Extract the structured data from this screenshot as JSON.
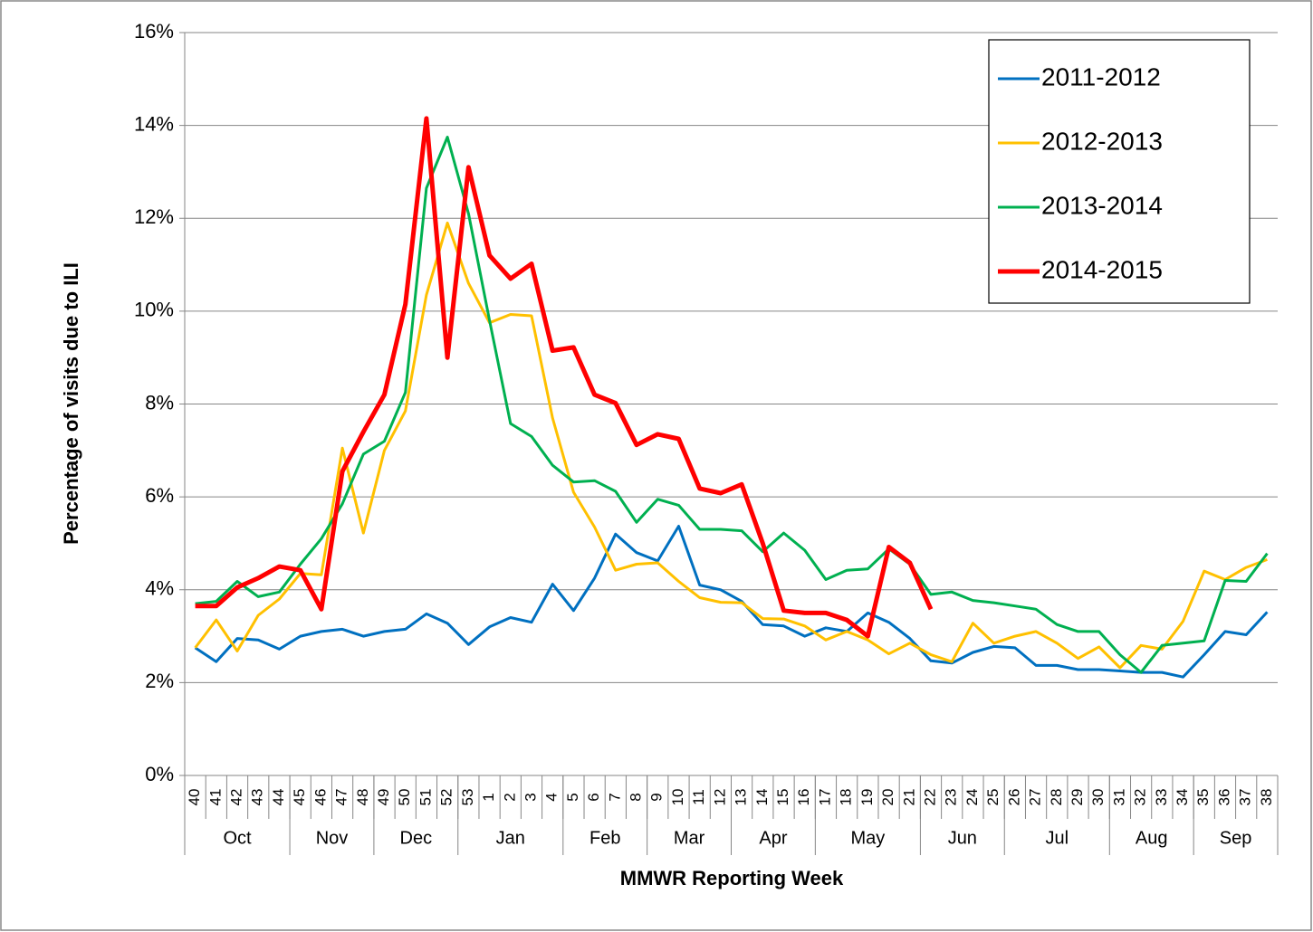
{
  "chart_data": {
    "type": "line",
    "y_label": "Percentage of visits due to ILI",
    "x_label": "MMWR Reporting Week",
    "categories": [
      "40",
      "41",
      "42",
      "43",
      "44",
      "45",
      "46",
      "47",
      "48",
      "49",
      "50",
      "51",
      "52",
      "53",
      "1",
      "2",
      "3",
      "4",
      "5",
      "6",
      "7",
      "8",
      "9",
      "10",
      "11",
      "12",
      "13",
      "14",
      "15",
      "16",
      "17",
      "18",
      "19",
      "20",
      "21",
      "22",
      "23",
      "24",
      "25",
      "26",
      "27",
      "28",
      "29",
      "30",
      "31",
      "32",
      "33",
      "34",
      "35",
      "36",
      "37",
      "38"
    ],
    "x_groups": [
      "Oct",
      null,
      null,
      null,
      null,
      "Nov",
      null,
      null,
      null,
      "Dec",
      null,
      null,
      null,
      "Jan",
      null,
      null,
      null,
      null,
      "Feb",
      null,
      null,
      null,
      "Mar",
      null,
      null,
      null,
      "Apr",
      null,
      null,
      null,
      "May",
      null,
      null,
      null,
      null,
      "Jun",
      null,
      null,
      null,
      "Jul",
      null,
      null,
      null,
      null,
      "Aug",
      null,
      null,
      null,
      "Sep",
      null,
      null,
      null
    ],
    "ylim": [
      0,
      16
    ],
    "yticks": [
      {
        "value": 0,
        "label": "0%"
      },
      {
        "value": 2,
        "label": "2%"
      },
      {
        "value": 4,
        "label": "4%"
      },
      {
        "value": 6,
        "label": "6%"
      },
      {
        "value": 8,
        "label": "8%"
      },
      {
        "value": 10,
        "label": "10%"
      },
      {
        "value": 12,
        "label": "12%"
      },
      {
        "value": 14,
        "label": "14%"
      },
      {
        "value": 16,
        "label": "16%"
      }
    ],
    "grid": true,
    "legend": "upper right",
    "series": [
      {
        "name": "2011-2012",
        "color": "#0070c0",
        "width": 3,
        "values": [
          2.75,
          2.45,
          2.95,
          2.92,
          2.72,
          3.0,
          3.1,
          3.15,
          3.0,
          3.1,
          3.15,
          3.48,
          3.28,
          2.82,
          3.2,
          3.4,
          3.3,
          4.12,
          3.55,
          4.25,
          5.2,
          4.8,
          4.62,
          5.37,
          4.1,
          4.0,
          3.75,
          3.25,
          3.22,
          3.0,
          3.18,
          3.1,
          3.5,
          3.3,
          2.95,
          2.47,
          2.42,
          2.65,
          2.78,
          2.75,
          2.37,
          2.37,
          2.28,
          2.28,
          2.25,
          2.22,
          2.22,
          2.12,
          2.6,
          3.1,
          3.03,
          3.52
        ]
      },
      {
        "name": "2012-2013",
        "color": "#ffc000",
        "width": 3,
        "values": [
          2.75,
          3.35,
          2.68,
          3.45,
          3.8,
          4.35,
          4.32,
          7.05,
          5.22,
          7.0,
          7.85,
          10.35,
          11.9,
          10.6,
          9.75,
          9.93,
          9.9,
          7.7,
          6.1,
          5.35,
          4.42,
          4.55,
          4.58,
          4.18,
          3.83,
          3.73,
          3.72,
          3.38,
          3.37,
          3.22,
          2.92,
          3.1,
          2.92,
          2.62,
          2.85,
          2.6,
          2.45,
          3.28,
          2.85,
          3.0,
          3.1,
          2.85,
          2.52,
          2.77,
          2.32,
          2.8,
          2.72,
          3.32,
          4.4,
          4.22,
          4.48,
          4.65
        ]
      },
      {
        "name": "2013-2014",
        "color": "#00b050",
        "width": 3,
        "values": [
          3.7,
          3.75,
          4.18,
          3.85,
          3.95,
          4.55,
          5.1,
          5.85,
          6.92,
          7.2,
          8.25,
          12.65,
          13.75,
          12.1,
          9.8,
          7.58,
          7.3,
          6.68,
          6.32,
          6.35,
          6.12,
          5.45,
          5.95,
          5.82,
          5.3,
          5.3,
          5.27,
          4.82,
          5.22,
          4.85,
          4.22,
          4.42,
          4.45,
          4.88,
          4.55,
          3.9,
          3.95,
          3.77,
          3.72,
          3.65,
          3.58,
          3.25,
          3.1,
          3.1,
          2.6,
          2.22,
          2.8,
          2.85,
          2.9,
          4.2,
          4.18,
          4.78
        ]
      },
      {
        "name": "2014-2015",
        "color": "#ff0000",
        "width": 5,
        "values": [
          3.65,
          3.65,
          4.05,
          4.25,
          4.5,
          4.42,
          3.58,
          6.55,
          7.4,
          8.2,
          10.15,
          14.15,
          9.0,
          13.1,
          11.2,
          10.7,
          11.02,
          9.15,
          9.22,
          8.2,
          8.02,
          7.12,
          7.35,
          7.25,
          6.18,
          6.08,
          6.27,
          5.0,
          3.55,
          3.5,
          3.5,
          3.35,
          3.0,
          4.92,
          4.58,
          3.58,
          null,
          null,
          null,
          null,
          null,
          null,
          null,
          null,
          null,
          null,
          null,
          null,
          null,
          null,
          null,
          null
        ]
      }
    ]
  }
}
